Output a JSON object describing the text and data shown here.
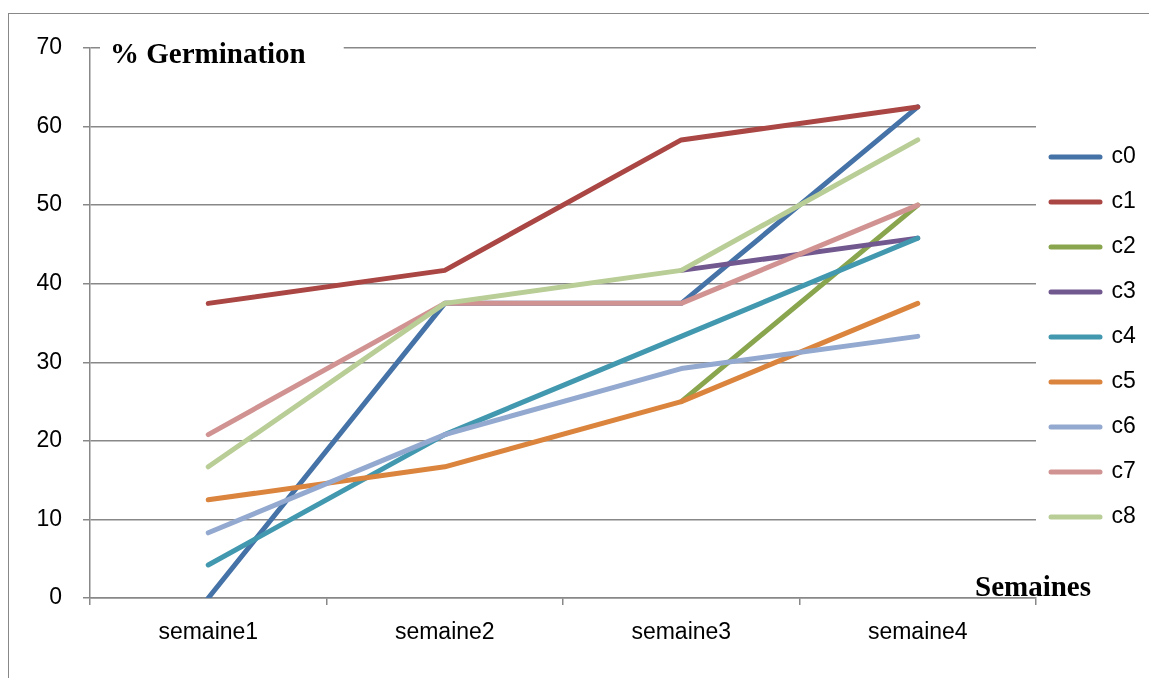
{
  "chart_data": {
    "type": "line",
    "ylabel": "% Germination",
    "xlabel": "Semaines",
    "categories": [
      "semaine1",
      "semaine2",
      "semaine3",
      "semaine4"
    ],
    "series": [
      {
        "name": "c0",
        "color": "#4572a7",
        "values": [
          0,
          37.5,
          37.5,
          62.5
        ]
      },
      {
        "name": "c1",
        "color": "#aa4643",
        "values": [
          37.5,
          41.7,
          58.3,
          62.5
        ]
      },
      {
        "name": "c2",
        "color": "#89a54e",
        "values": [
          null,
          null,
          25,
          50
        ]
      },
      {
        "name": "c3",
        "color": "#71588f",
        "values": [
          null,
          null,
          41.7,
          45.8
        ]
      },
      {
        "name": "c4",
        "color": "#4198af",
        "values": [
          4.2,
          20.8,
          33.3,
          45.8
        ]
      },
      {
        "name": "c5",
        "color": "#db843d",
        "values": [
          12.5,
          16.7,
          25,
          37.5
        ]
      },
      {
        "name": "c6",
        "color": "#93a9cf",
        "values": [
          8.3,
          20.8,
          29.2,
          33.3
        ]
      },
      {
        "name": "c7",
        "color": "#d19392",
        "values": [
          20.8,
          37.5,
          37.5,
          50
        ]
      },
      {
        "name": "c8",
        "color": "#b9cd96",
        "values": [
          16.7,
          37.5,
          41.7,
          58.3
        ]
      }
    ],
    "ylim": [
      0,
      70
    ],
    "yticks": [
      0,
      10,
      20,
      30,
      40,
      50,
      60,
      70
    ],
    "grid": "y",
    "legend": "right",
    "marker": "none",
    "line_style": "solid"
  }
}
